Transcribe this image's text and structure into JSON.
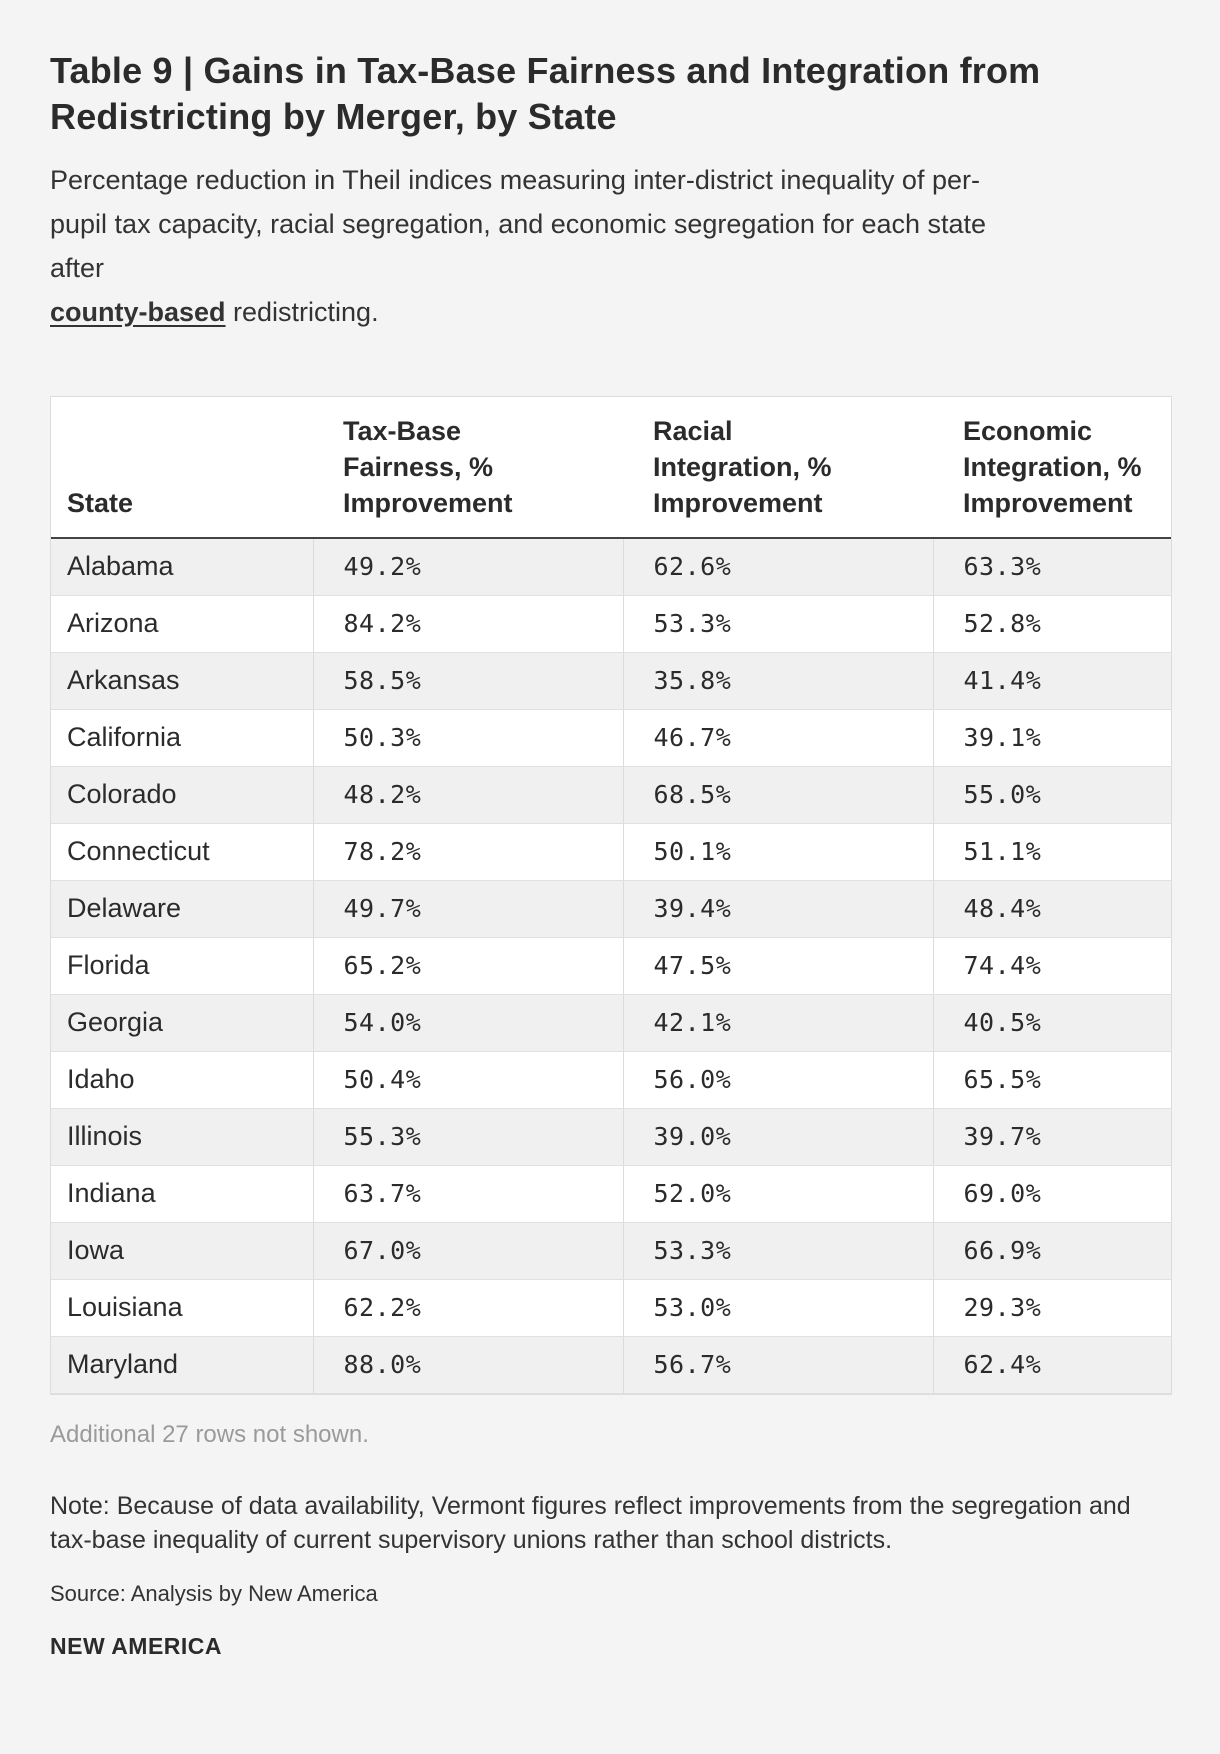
{
  "chart_data": {
    "type": "table",
    "title": "Table 9 | Gains in Tax-Base Fairness and Integration from Redistricting by Merger, by State",
    "subtitle_lines": [
      "Percentage reduction in Theil indices measuring inter-district inequality of per-",
      "pupil tax capacity, racial segregation, and economic segregation for each state",
      "after"
    ],
    "subtitle_emphasis": "county-based",
    "subtitle_tail": " redistricting.",
    "columns": [
      {
        "lines": [
          "State"
        ]
      },
      {
        "lines": [
          "Tax-Base",
          "Fairness, %",
          "Improvement"
        ]
      },
      {
        "lines": [
          "Racial",
          "Integration, %",
          "Improvement"
        ]
      },
      {
        "lines": [
          "Economic",
          "Integration, %",
          "Improvement"
        ]
      }
    ],
    "rows": [
      [
        "Alabama",
        "49.2%",
        "62.6%",
        "63.3%"
      ],
      [
        "Arizona",
        "84.2%",
        "53.3%",
        "52.8%"
      ],
      [
        "Arkansas",
        "58.5%",
        "35.8%",
        "41.4%"
      ],
      [
        "California",
        "50.3%",
        "46.7%",
        "39.1%"
      ],
      [
        "Colorado",
        "48.2%",
        "68.5%",
        "55.0%"
      ],
      [
        "Connecticut",
        "78.2%",
        "50.1%",
        "51.1%"
      ],
      [
        "Delaware",
        "49.7%",
        "39.4%",
        "48.4%"
      ],
      [
        "Florida",
        "65.2%",
        "47.5%",
        "74.4%"
      ],
      [
        "Georgia",
        "54.0%",
        "42.1%",
        "40.5%"
      ],
      [
        "Idaho",
        "50.4%",
        "56.0%",
        "65.5%"
      ],
      [
        "Illinois",
        "55.3%",
        "39.0%",
        "39.7%"
      ],
      [
        "Indiana",
        "63.7%",
        "52.0%",
        "69.0%"
      ],
      [
        "Iowa",
        "67.0%",
        "53.3%",
        "66.9%"
      ],
      [
        "Louisiana",
        "62.2%",
        "53.0%",
        "29.3%"
      ],
      [
        "Maryland",
        "88.0%",
        "56.7%",
        "62.4%"
      ]
    ],
    "more_rows_text": "Additional 27 rows not shown.",
    "note": "Note: Because of data availability, Vermont figures reflect improvements from the segregation and tax-base inequality of current supervisory unions rather than school districts.",
    "source": "Source: Analysis by New America",
    "brand": "NEW AMERICA"
  }
}
